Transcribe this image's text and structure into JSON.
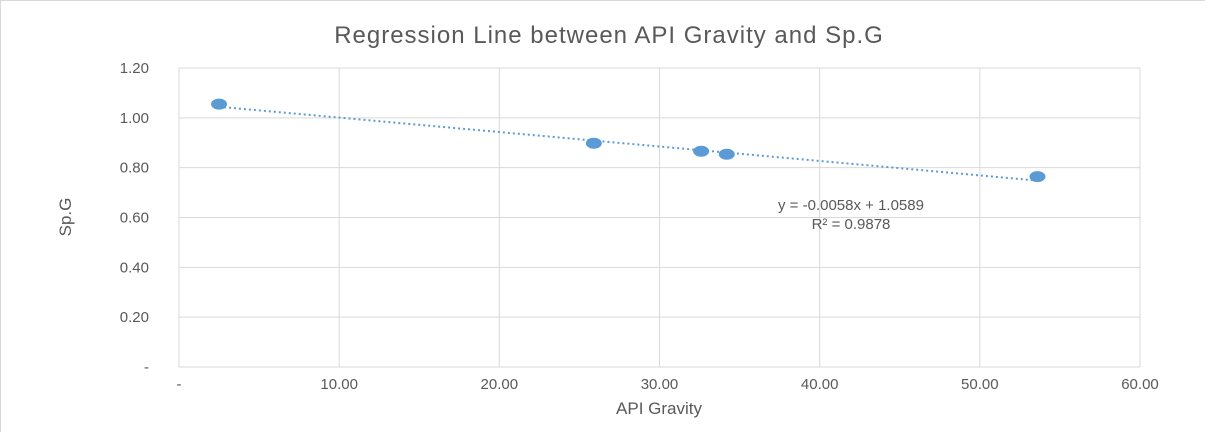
{
  "chart_data": {
    "type": "scatter",
    "title": "Regression Line  between API Gravity and Sp.G",
    "xlabel": "API Gravity",
    "ylabel": "Sp.G",
    "xlim": [
      0,
      60
    ],
    "ylim": [
      0,
      1.2
    ],
    "x_ticks": [
      {
        "value": 0,
        "label": "-"
      },
      {
        "value": 10,
        "label": "10.00"
      },
      {
        "value": 20,
        "label": "20.00"
      },
      {
        "value": 30,
        "label": "30.00"
      },
      {
        "value": 40,
        "label": "40.00"
      },
      {
        "value": 50,
        "label": "50.00"
      },
      {
        "value": 60,
        "label": "60.00"
      }
    ],
    "y_ticks": [
      {
        "value": 0,
        "label": "-"
      },
      {
        "value": 0.2,
        "label": "0.20"
      },
      {
        "value": 0.4,
        "label": "0.40"
      },
      {
        "value": 0.6,
        "label": "0.60"
      },
      {
        "value": 0.8,
        "label": "0.80"
      },
      {
        "value": 1.0,
        "label": "1.00"
      },
      {
        "value": 1.2,
        "label": "1.20"
      }
    ],
    "grid": true,
    "points": [
      {
        "x": 2.5,
        "y": 1.055
      },
      {
        "x": 25.9,
        "y": 0.898
      },
      {
        "x": 32.6,
        "y": 0.866
      },
      {
        "x": 34.2,
        "y": 0.854
      },
      {
        "x": 53.6,
        "y": 0.764
      }
    ],
    "trendline": {
      "type": "linear",
      "slope": -0.0058,
      "intercept": 1.0589,
      "x_range": [
        2.5,
        53.6
      ],
      "equation": "y = -0.0058x + 1.0589",
      "r_squared": "R² = 0.9878"
    },
    "colors": {
      "points": "#5b9bd5",
      "trendline": "#5b9bd5",
      "grid": "#d9d9d9",
      "text": "#595959"
    }
  }
}
